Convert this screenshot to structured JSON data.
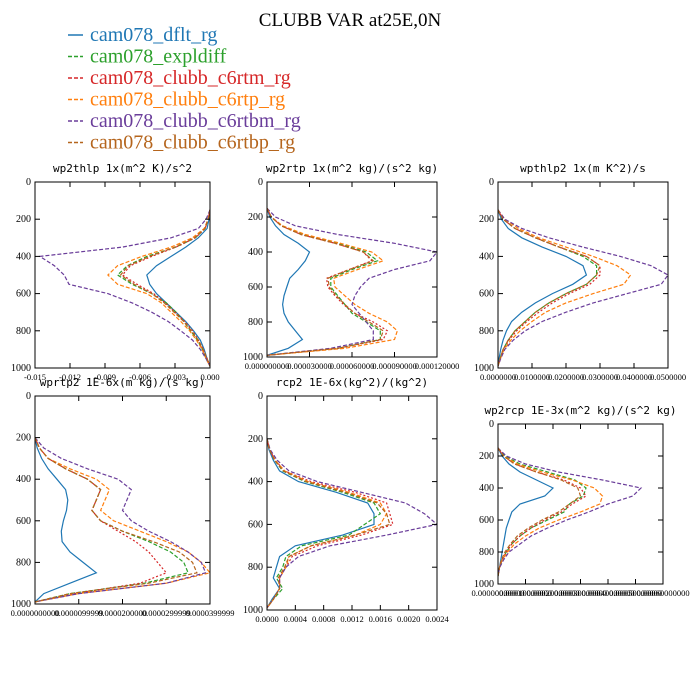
{
  "figure": {
    "title": "CLUBB VAR at25E,0N",
    "legend": [
      {
        "label": "cam078_dflt_rg",
        "color": "#1f77b4"
      },
      {
        "label": "cam078_expldiff",
        "color": "#2ca02c"
      },
      {
        "label": "cam078_clubb_c6rtm_rg",
        "color": "#d62728"
      },
      {
        "label": "cam078_clubb_c6rtp_rg",
        "color": "#ff7f0e"
      },
      {
        "label": "cam078_clubb_c6rtbm_rg",
        "color": "#6a3d9a"
      },
      {
        "label": "cam078_clubb_c6rtbp_rg",
        "color": "#b5651d"
      }
    ]
  },
  "chart_data": [
    {
      "type": "line",
      "title": "wp2thlp  1x(m^2 K)/s^2",
      "xlim": [
        -0.018,
        0.0
      ],
      "ylim": [
        0,
        1000
      ],
      "xticks": [
        "-0.015",
        "-0.012",
        "-0.009",
        "-0.006",
        "-0.003",
        "0.000"
      ],
      "yticks": [
        "0",
        "200",
        "400",
        "600",
        "800",
        "1000"
      ],
      "y": [
        150,
        200,
        250,
        300,
        350,
        400,
        450,
        500,
        550,
        600,
        650,
        700,
        750,
        800,
        850,
        900,
        950,
        990
      ],
      "series": [
        {
          "values": [
            0,
            -0.0001,
            -0.0003,
            -0.0012,
            -0.0025,
            -0.004,
            -0.0055,
            -0.0065,
            -0.0062,
            -0.0055,
            -0.0045,
            -0.0035,
            -0.0025,
            -0.0017,
            -0.001,
            -0.0006,
            -0.0003,
            0
          ]
        },
        {
          "values": [
            0,
            -0.0002,
            -0.0005,
            -0.0015,
            -0.0035,
            -0.0065,
            -0.0085,
            -0.0095,
            -0.008,
            -0.006,
            -0.0045,
            -0.0035,
            -0.0027,
            -0.002,
            -0.0013,
            -0.0008,
            -0.0004,
            0
          ]
        },
        {
          "values": [
            0,
            -0.0002,
            -0.0005,
            -0.0015,
            -0.0035,
            -0.006,
            -0.0082,
            -0.009,
            -0.0075,
            -0.0058,
            -0.0046,
            -0.0036,
            -0.0026,
            -0.0018,
            -0.0012,
            -0.0007,
            -0.0003,
            0
          ]
        },
        {
          "values": [
            0,
            -0.0002,
            -0.0006,
            -0.0018,
            -0.004,
            -0.007,
            -0.0095,
            -0.0105,
            -0.0095,
            -0.0065,
            -0.005,
            -0.004,
            -0.003,
            -0.0021,
            -0.0014,
            -0.0008,
            -0.0004,
            0
          ]
        },
        {
          "values": [
            0,
            -0.0004,
            -0.0012,
            -0.004,
            -0.009,
            -0.0175,
            -0.016,
            -0.015,
            -0.0145,
            -0.0105,
            -0.008,
            -0.006,
            -0.0043,
            -0.003,
            -0.0018,
            -0.001,
            -0.0004,
            0
          ]
        },
        {
          "values": [
            0,
            -0.0002,
            -0.0005,
            -0.0016,
            -0.0036,
            -0.0062,
            -0.0084,
            -0.0092,
            -0.0078,
            -0.006,
            -0.0047,
            -0.0037,
            -0.0027,
            -0.0019,
            -0.0012,
            -0.0007,
            -0.0003,
            0
          ]
        }
      ]
    },
    {
      "type": "line",
      "title": "wp2rtp  1x(m^2 kg)/(s^2 kg)",
      "xlim": [
        0.0,
        0.00012
      ],
      "ylim": [
        0,
        1000
      ],
      "xticks": [
        "0.000000000",
        "0.000030000",
        "0.000060000",
        "0.000090000",
        "0.000120000"
      ],
      "yticks": [
        "0",
        "200",
        "400",
        "600",
        "800",
        "1000"
      ],
      "y": [
        150,
        200,
        250,
        300,
        350,
        400,
        450,
        500,
        550,
        600,
        650,
        700,
        750,
        800,
        850,
        900,
        950,
        990
      ],
      "series": [
        {
          "values": [
            0,
            2e-06,
            6e-06,
            1.2e-05,
            2.2e-05,
            3e-05,
            2.7e-05,
            2.2e-05,
            1.6e-05,
            1.4e-05,
            1.2e-05,
            1.1e-05,
            1.2e-05,
            1.5e-05,
            2e-05,
            2.5e-05,
            1.5e-05,
            0
          ]
        },
        {
          "values": [
            0,
            3e-06,
            1e-05,
            2.5e-05,
            5e-05,
            7e-05,
            7.8e-05,
            6e-05,
            4.5e-05,
            4.5e-05,
            5e-05,
            5.5e-05,
            6e-05,
            7e-05,
            8e-05,
            8e-05,
            5e-05,
            0
          ]
        },
        {
          "values": [
            0,
            3e-06,
            1e-05,
            2.4e-05,
            4.8e-05,
            6.8e-05,
            7.4e-05,
            5.8e-05,
            4.2e-05,
            4.3e-05,
            4.8e-05,
            5.4e-05,
            6.2e-05,
            7.5e-05,
            8.5e-05,
            8.2e-05,
            5e-05,
            0
          ]
        },
        {
          "values": [
            0,
            3e-06,
            1.1e-05,
            2.7e-05,
            5.2e-05,
            7.4e-05,
            8.2e-05,
            6.4e-05,
            4.7e-05,
            4.8e-05,
            5.5e-05,
            6.2e-05,
            7.2e-05,
            8.5e-05,
            9.2e-05,
            9e-05,
            5.5e-05,
            0
          ]
        },
        {
          "values": [
            0,
            6e-06,
            2e-05,
            5e-05,
            9e-05,
            0.00012,
            0.000115,
            9e-05,
            7.2e-05,
            6.6e-05,
            6.2e-05,
            6e-05,
            6.5e-05,
            7e-05,
            7.5e-05,
            7.5e-05,
            4.5e-05,
            0
          ]
        },
        {
          "values": [
            0,
            3e-06,
            1e-05,
            2.4e-05,
            4.8e-05,
            6.8e-05,
            7.5e-05,
            5.8e-05,
            4.3e-05,
            4.4e-05,
            4.9e-05,
            5.5e-05,
            6.2e-05,
            7.2e-05,
            8.2e-05,
            8e-05,
            5e-05,
            0
          ]
        }
      ]
    },
    {
      "type": "line",
      "title": "wpthlp2  1x(m K^2)/s",
      "xlim": [
        0.0,
        0.05
      ],
      "ylim": [
        0,
        1000
      ],
      "xticks": [
        "0.0000000",
        "0.0100000",
        "0.0200000",
        "0.0300000",
        "0.0400000",
        "0.0500000"
      ],
      "yticks": [
        "0",
        "200",
        "400",
        "600",
        "800",
        "1000"
      ],
      "y": [
        150,
        200,
        250,
        300,
        350,
        400,
        450,
        500,
        550,
        600,
        650,
        700,
        750,
        800,
        850,
        900,
        950,
        990
      ],
      "series": [
        {
          "values": [
            0,
            0.001,
            0.003,
            0.007,
            0.013,
            0.02,
            0.025,
            0.026,
            0.022,
            0.016,
            0.011,
            0.007,
            0.004,
            0.0025,
            0.0015,
            0.0008,
            0.0003,
            0
          ]
        },
        {
          "values": [
            0,
            0.0015,
            0.005,
            0.011,
            0.018,
            0.025,
            0.029,
            0.029,
            0.026,
            0.02,
            0.015,
            0.011,
            0.008,
            0.005,
            0.003,
            0.0015,
            0.0006,
            0
          ]
        },
        {
          "values": [
            0,
            0.0015,
            0.005,
            0.011,
            0.018,
            0.026,
            0.03,
            0.03,
            0.027,
            0.021,
            0.016,
            0.012,
            0.0085,
            0.0055,
            0.0032,
            0.0016,
            0.0006,
            0
          ]
        },
        {
          "values": [
            0,
            0.002,
            0.006,
            0.012,
            0.02,
            0.028,
            0.035,
            0.039,
            0.037,
            0.028,
            0.02,
            0.014,
            0.01,
            0.0065,
            0.0038,
            0.0018,
            0.0007,
            0
          ]
        },
        {
          "values": [
            0,
            0.002,
            0.007,
            0.015,
            0.025,
            0.036,
            0.045,
            0.05,
            0.048,
            0.038,
            0.028,
            0.02,
            0.013,
            0.008,
            0.0045,
            0.002,
            0.0008,
            0
          ]
        },
        {
          "values": [
            0,
            0.0015,
            0.005,
            0.011,
            0.018,
            0.026,
            0.03,
            0.029,
            0.026,
            0.02,
            0.015,
            0.011,
            0.008,
            0.005,
            0.003,
            0.0015,
            0.0006,
            0
          ]
        }
      ]
    },
    {
      "type": "line",
      "title": "wprtp2  1E-6x(m kg)/(s kg)",
      "xlim": [
        0.0,
        4e-05
      ],
      "ylim": [
        0,
        1000
      ],
      "xticks": [
        "0.0000000000",
        "0.0000099999",
        "0.0000200000",
        "0.0000299999",
        "0.0000399999"
      ],
      "yticks": [
        "0",
        "200",
        "400",
        "600",
        "800",
        "1000"
      ],
      "y": [
        200,
        250,
        300,
        350,
        400,
        450,
        500,
        550,
        600,
        650,
        700,
        750,
        800,
        850,
        900,
        950,
        990
      ],
      "series": [
        {
          "values": [
            0,
            5e-07,
            1.5e-06,
            3e-06,
            5e-06,
            7e-06,
            7.5e-06,
            7.2e-06,
            6.5e-06,
            6e-06,
            6.2e-06,
            8e-06,
            1.1e-05,
            1.4e-05,
            8e-06,
            2e-06,
            0
          ]
        },
        {
          "values": [
            0,
            1e-06,
            3e-06,
            7e-06,
            1.2e-05,
            1.5e-05,
            1.4e-05,
            1.3e-05,
            1.5e-05,
            2e-05,
            2.6e-05,
            3.1e-05,
            3.4e-05,
            3.5e-05,
            2.5e-05,
            8e-06,
            0
          ]
        },
        {
          "values": [
            0,
            1e-06,
            3e-06,
            7e-06,
            1.2e-05,
            1.5e-05,
            1.4e-05,
            1.3e-05,
            1.5e-05,
            1.9e-05,
            2.3e-05,
            2.6e-05,
            2.8e-05,
            3e-05,
            2.4e-05,
            9e-06,
            0
          ]
        },
        {
          "values": [
            0,
            1e-06,
            3e-06,
            8e-06,
            1.4e-05,
            1.7e-05,
            1.6e-05,
            1.5e-05,
            1.8e-05,
            2.4e-05,
            3e-05,
            3.5e-05,
            3.8e-05,
            4e-05,
            3e-05,
            1e-05,
            0
          ]
        },
        {
          "values": [
            0,
            2e-06,
            6e-06,
            1.2e-05,
            1.9e-05,
            2.2e-05,
            2.1e-05,
            2e-05,
            2.2e-05,
            2.6e-05,
            3.1e-05,
            3.5e-05,
            3.8e-05,
            3.9e-05,
            3e-05,
            1e-05,
            0
          ]
        },
        {
          "values": [
            0,
            1e-06,
            3e-06,
            7e-06,
            1.2e-05,
            1.5e-05,
            1.4e-05,
            1.3e-05,
            1.5e-05,
            2e-05,
            2.7e-05,
            3.3e-05,
            3.6e-05,
            3.7e-05,
            2.6e-05,
            8e-06,
            0
          ]
        }
      ]
    },
    {
      "type": "line",
      "title": "rcp2  1E-6x(kg^2)/(kg^2)",
      "xlim": [
        0.0,
        0.0027
      ],
      "ylim": [
        0,
        1000
      ],
      "xticks": [
        "0.0000",
        "0.0004",
        "0.0008",
        "0.0012",
        "0.0016",
        "0.0020",
        "0.0024"
      ],
      "yticks": [
        "0",
        "200",
        "400",
        "600",
        "800",
        "1000"
      ],
      "y": [
        200,
        250,
        300,
        350,
        400,
        450,
        500,
        550,
        600,
        650,
        700,
        750,
        800,
        850,
        900,
        950,
        990
      ],
      "series": [
        {
          "values": [
            0,
            3e-05,
            0.0001,
            0.0002,
            0.0005,
            0.0011,
            0.0016,
            0.0017,
            0.0017,
            0.0012,
            0.00045,
            0.0002,
            0.00015,
            0.0001,
            0.0002,
            8e-05,
            0
          ]
        },
        {
          "values": [
            0,
            4e-05,
            0.00012,
            0.00025,
            0.0006,
            0.0012,
            0.0017,
            0.0018,
            0.00155,
            0.0013,
            0.00055,
            0.0003,
            0.00025,
            0.00015,
            0.00025,
            0.0001,
            0
          ]
        },
        {
          "values": [
            0,
            4e-05,
            0.00013,
            0.00028,
            0.0007,
            0.0014,
            0.0019,
            0.00195,
            0.002,
            0.0015,
            0.0008,
            0.0004,
            0.0003,
            0.0002,
            0.0002,
            0.0001,
            0
          ]
        },
        {
          "values": [
            0,
            4e-05,
            0.00013,
            0.00028,
            0.00065,
            0.0013,
            0.0018,
            0.0019,
            0.0018,
            0.0014,
            0.0007,
            0.00035,
            0.0003,
            0.0002,
            0.0002,
            0.0001,
            0
          ]
        },
        {
          "values": [
            0,
            5e-05,
            0.00016,
            0.00035,
            0.0008,
            0.0015,
            0.0022,
            0.0025,
            0.0027,
            0.0019,
            0.001,
            0.0005,
            0.0003,
            0.0002,
            0.0002,
            0.0001,
            0
          ]
        },
        {
          "values": [
            0,
            4e-05,
            0.00012,
            0.00026,
            0.00062,
            0.00125,
            0.00175,
            0.0019,
            0.00195,
            0.0014,
            0.0007,
            0.00035,
            0.00028,
            0.00018,
            0.0002,
            0.0001,
            0
          ]
        }
      ]
    },
    {
      "type": "line",
      "title": "wp2rcp  1E-3x(m^2 kg)/(s^2 kg)",
      "xlim": [
        0.0,
        0.0006
      ],
      "ylim": [
        0,
        1000
      ],
      "xticks": [
        "0.00000000000",
        "0.00010000000",
        "0.00020000000",
        "0.00030000000",
        "0.00040000000",
        "0.00050000000",
        "0.00060000000"
      ],
      "yticks": [
        "0",
        "200",
        "400",
        "600",
        "800",
        "1000"
      ],
      "y": [
        150,
        200,
        250,
        300,
        350,
        400,
        450,
        500,
        550,
        600,
        650,
        700,
        750,
        800,
        850,
        900,
        950
      ],
      "series": [
        {
          "values": [
            0,
            1.5e-05,
            4e-05,
            8e-05,
            0.00014,
            0.0002,
            0.00017,
            8e-05,
            5e-05,
            4e-05,
            3e-05,
            2.5e-05,
            2e-05,
            1.5e-05,
            1e-05,
            5e-06,
            0
          ]
        },
        {
          "values": [
            0,
            2.5e-05,
            8e-05,
            0.00018,
            0.00028,
            0.00032,
            0.00031,
            0.00026,
            0.00024,
            0.00018,
            0.00012,
            8e-05,
            5e-05,
            3e-05,
            1.5e-05,
            5e-06,
            0
          ]
        },
        {
          "values": [
            0,
            2e-05,
            6e-05,
            0.00014,
            0.00024,
            0.0003,
            0.00032,
            0.00027,
            0.00023,
            0.00017,
            0.00012,
            8e-05,
            5e-05,
            3e-05,
            1.5e-05,
            5e-06,
            0
          ]
        },
        {
          "values": [
            0,
            2e-05,
            7e-05,
            0.00016,
            0.00027,
            0.00035,
            0.00038,
            0.00037,
            0.0003,
            0.00022,
            0.00015,
            0.0001,
            6e-05,
            3.5e-05,
            1.5e-05,
            5e-06,
            0
          ]
        },
        {
          "values": [
            0,
            3e-05,
            0.0001,
            0.00022,
            0.00038,
            0.00052,
            0.00049,
            0.0004,
            0.00033,
            0.00025,
            0.00018,
            0.00012,
            8e-05,
            4e-05,
            2e-05,
            5e-06,
            0
          ]
        },
        {
          "values": [
            0,
            2e-05,
            6e-05,
            0.00014,
            0.00023,
            0.00029,
            0.0003,
            0.00026,
            0.00022,
            0.00016,
            0.00011,
            7e-05,
            4.5e-05,
            2.5e-05,
            1.2e-05,
            5e-06,
            0
          ]
        }
      ]
    }
  ]
}
